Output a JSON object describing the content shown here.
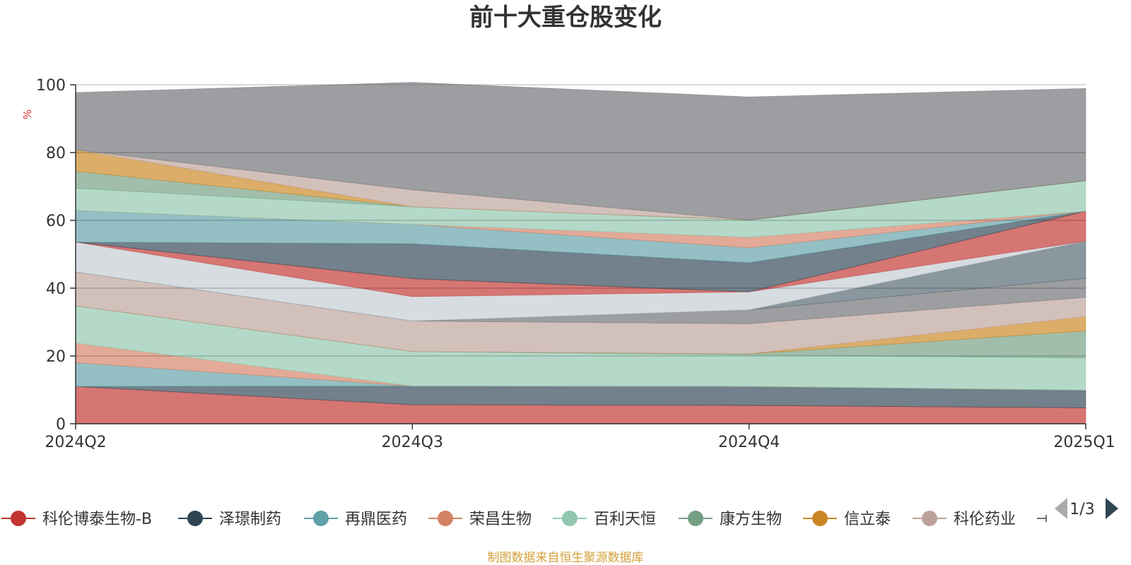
{
  "chart_data": {
    "type": "area",
    "stacked": true,
    "title": "前十大重仓股变化",
    "ylabel": "%",
    "ylim": [
      0,
      100
    ],
    "yticks": [
      0,
      20,
      40,
      60,
      80,
      100
    ],
    "categories": [
      "2024Q2",
      "2024Q3",
      "2024Q4",
      "2025Q1"
    ],
    "grid": true,
    "legend_position": "bottom",
    "legend_page": "1/3",
    "source": "制图数据来自恒生聚源数据库",
    "series": [
      {
        "name": "科伦博泰生物-B",
        "color": "#c23531",
        "values": [
          11.0,
          5.6,
          5.4,
          4.7
        ]
      },
      {
        "name": "泽璟制药",
        "color": "#2f4554",
        "values": [
          0,
          5.5,
          5.6,
          5.2
        ]
      },
      {
        "name": "再鼎医药",
        "color": "#61a0a8",
        "values": [
          7.0,
          0,
          0,
          0
        ]
      },
      {
        "name": "荣昌生物",
        "color": "#d48265",
        "values": [
          5.8,
          0,
          0,
          0
        ]
      },
      {
        "name": "百利天恒",
        "color": "#91c7ae",
        "values": [
          11.0,
          10.2,
          9.3,
          9.5
        ]
      },
      {
        "name": "康方生物",
        "color": "#749f83",
        "values": [
          0,
          0,
          0.3,
          8.0
        ]
      },
      {
        "name": "信立泰",
        "color": "#ca8622",
        "values": [
          0,
          0,
          0,
          4.2
        ]
      },
      {
        "name": "科伦药业",
        "color": "#bda29a",
        "values": [
          10.0,
          9.0,
          8.9,
          5.7
        ]
      },
      {
        "name": "",
        "color": "#6e7074",
        "values": [
          0,
          0,
          4.1,
          5.6
        ]
      },
      {
        "name": "",
        "color": "#546570",
        "values": [
          0,
          0,
          0,
          11.0
        ]
      },
      {
        "name": "",
        "color": "#c4ccd3",
        "values": [
          8.8,
          7.2,
          5.3,
          0
        ]
      },
      {
        "name": "",
        "color": "#c23531",
        "values": [
          0,
          5.3,
          0,
          8.8
        ]
      },
      {
        "name": "",
        "color": "#2f4554",
        "values": [
          0,
          10.3,
          8.6,
          0
        ]
      },
      {
        "name": "",
        "color": "#61a0a8",
        "values": [
          9.3,
          5.7,
          4.4,
          0
        ]
      },
      {
        "name": "",
        "color": "#d48265",
        "values": [
          0,
          0,
          3.1,
          0
        ]
      },
      {
        "name": "",
        "color": "#91c7ae",
        "values": [
          6.6,
          5.2,
          5.1,
          9.0
        ]
      },
      {
        "name": "",
        "color": "#749f83",
        "values": [
          5.0,
          0,
          0,
          0
        ]
      },
      {
        "name": "",
        "color": "#ca8622",
        "values": [
          6.3,
          0,
          0,
          0
        ]
      },
      {
        "name": "",
        "color": "#bda29a",
        "values": [
          0,
          5.0,
          0,
          0
        ]
      },
      {
        "name": "",
        "color": "#6e7074",
        "values": [
          16.9,
          31.7,
          36.3,
          27.2
        ]
      }
    ]
  }
}
